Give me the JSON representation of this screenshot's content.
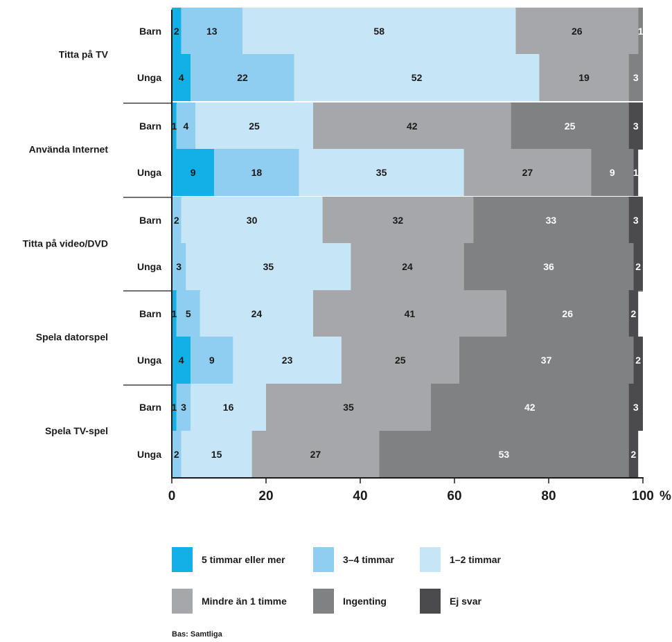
{
  "chart_data": {
    "type": "bar",
    "orientation": "horizontal",
    "stacked": true,
    "xlim": [
      0,
      100
    ],
    "x_ticks": [
      "0",
      "20",
      "40",
      "60",
      "80",
      "100"
    ],
    "x_unit": "%",
    "legend_position": "bottom",
    "grid": false,
    "categories": [
      {
        "group": "Titta på TV",
        "rows": [
          {
            "label": "Barn",
            "values": [
              2,
              13,
              58,
              26,
              1,
              0
            ]
          },
          {
            "label": "Unga",
            "values": [
              4,
              22,
              52,
              19,
              3,
              0
            ]
          }
        ]
      },
      {
        "group": "Använda Internet",
        "rows": [
          {
            "label": "Barn",
            "values": [
              1,
              4,
              25,
              42,
              25,
              3
            ]
          },
          {
            "label": "Unga",
            "values": [
              9,
              18,
              35,
              27,
              9,
              1
            ]
          }
        ]
      },
      {
        "group": "Titta på video/DVD",
        "rows": [
          {
            "label": "Barn",
            "values": [
              0,
              2,
              30,
              32,
              33,
              3
            ]
          },
          {
            "label": "Unga",
            "values": [
              0,
              3,
              35,
              24,
              36,
              2
            ]
          }
        ]
      },
      {
        "group": "Spela datorspel",
        "rows": [
          {
            "label": "Barn",
            "values": [
              1,
              5,
              24,
              41,
              26,
              2
            ]
          },
          {
            "label": "Unga",
            "values": [
              4,
              9,
              23,
              25,
              37,
              2
            ]
          }
        ]
      },
      {
        "group": "Spela TV-spel",
        "rows": [
          {
            "label": "Barn",
            "values": [
              1,
              3,
              16,
              35,
              42,
              3
            ]
          },
          {
            "label": "Unga",
            "values": [
              0,
              2,
              15,
              27,
              53,
              2
            ]
          }
        ]
      }
    ],
    "series": [
      {
        "name": "5 timmar eller mer",
        "color": "#12b0e6",
        "label_color": "#1a1a1a"
      },
      {
        "name": "3–4 timmar",
        "color": "#8fcef1",
        "label_color": "#1a1a1a"
      },
      {
        "name": "1–2 timmar",
        "color": "#c6e5f7",
        "label_color": "#1a1a1a"
      },
      {
        "name": "Mindre än 1 timme",
        "color": "#a6a7aa",
        "label_color": "#1a1a1a"
      },
      {
        "name": "Ingenting",
        "color": "#808183",
        "label_color": "#ffffff"
      },
      {
        "name": "Ej svar",
        "color": "#4b4b4d",
        "label_color": "#ffffff"
      }
    ],
    "note": "Bas: Samtliga"
  }
}
